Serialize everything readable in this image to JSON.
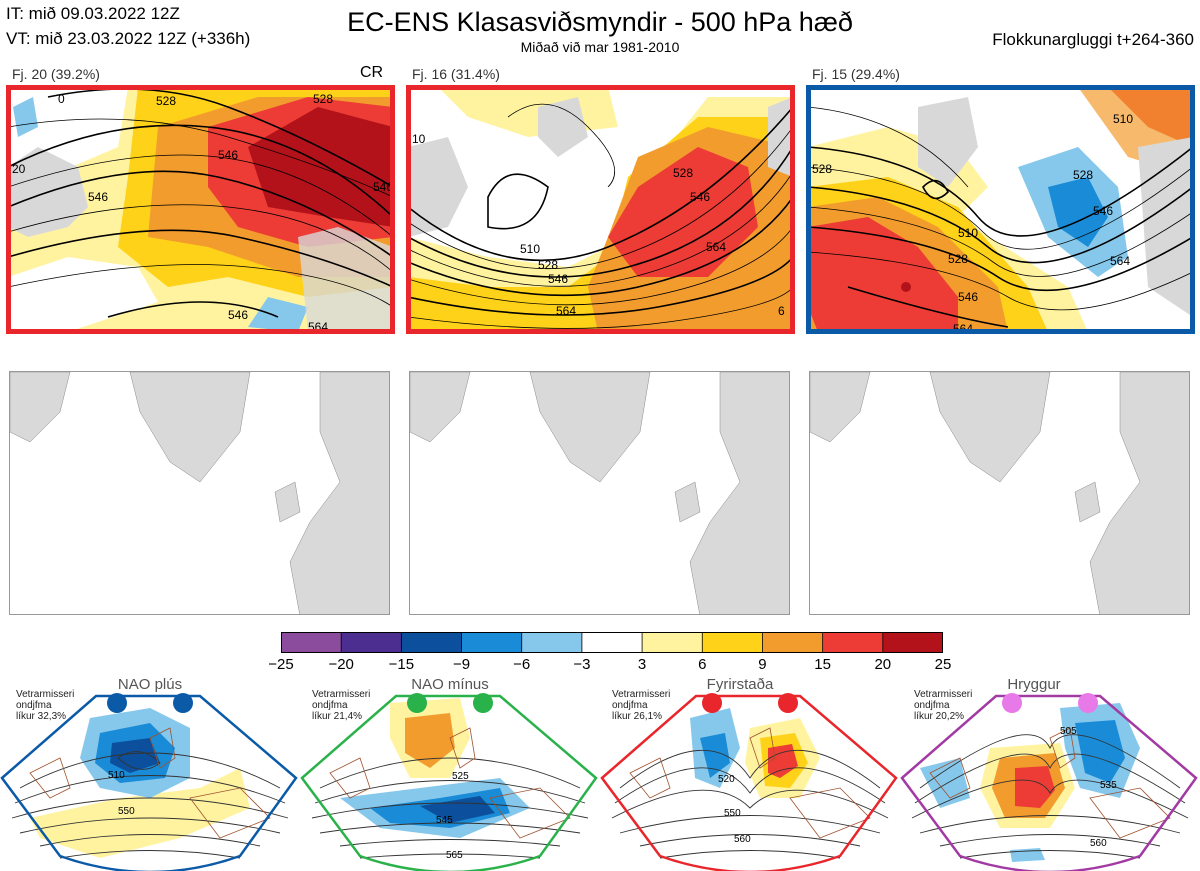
{
  "header": {
    "it_line": "IT: mið 09.03.2022 12Z",
    "vt_line": "VT: mið 23.03.2022 12Z  (+336h)",
    "title": "EC-ENS Klasasviðsmyndir - 500 hPa hæð",
    "subtitle": "Miðað við mar 1981-2010",
    "window": "Flokkunargluggi t+264-360"
  },
  "clusters": [
    {
      "label": "Fj. 20 (39.2%)",
      "regime_tag": "CR",
      "frame_color": "#e8262b",
      "contour_labels": [
        "528",
        "546",
        "546",
        "528",
        "546",
        "546",
        "564",
        "20",
        "0"
      ]
    },
    {
      "label": "Fj. 16 (31.4%)",
      "regime_tag": "",
      "frame_color": "#e8262b",
      "contour_labels": [
        "510",
        "528",
        "546",
        "564",
        "528",
        "546",
        "564",
        "10",
        "6"
      ]
    },
    {
      "label": "Fj. 15 (29.4%)",
      "regime_tag": "",
      "frame_color": "#0a5aa8",
      "contour_labels": [
        "510",
        "528",
        "546",
        "564",
        "510",
        "528",
        "546",
        "564",
        "528"
      ]
    }
  ],
  "colorbar": {
    "ticks": [
      "−25",
      "−20",
      "−15",
      "−9",
      "−6",
      "−3",
      "3",
      "6",
      "9",
      "15",
      "20",
      "25"
    ],
    "colors": [
      "#8b4c9e",
      "#4b2e8f",
      "#0c4f9c",
      "#1a8bd6",
      "#86c8ec",
      "#ffffff",
      "#fff3a0",
      "#ffd21a",
      "#f39c2e",
      "#ec3c35",
      "#b3121a"
    ]
  },
  "regimes": [
    {
      "name": "NAO plús",
      "note": [
        "Vetrarmisseri",
        "ondjfma",
        "líkur 32,3%"
      ],
      "color": "#0a5aa8",
      "contour_labels": [
        "510",
        "550"
      ]
    },
    {
      "name": "NAO mínus",
      "note": [
        "Vetrarmisseri",
        "ondjfma",
        "líkur 21,4%"
      ],
      "color": "#2ab24a",
      "contour_labels": [
        "525",
        "545",
        "565"
      ]
    },
    {
      "name": "Fyrirstaða",
      "note": [
        "Vetrarmisseri",
        "ondjfma",
        "líkur 26,1%"
      ],
      "color": "#e8262b",
      "contour_labels": [
        "520",
        "550",
        "560"
      ]
    },
    {
      "name": "Hryggur",
      "note": [
        "Vetrarmisseri",
        "ondjfma",
        "líkur 20,2%"
      ],
      "color": "#a23aa3",
      "contour_labels": [
        "505",
        "535",
        "560"
      ]
    }
  ]
}
